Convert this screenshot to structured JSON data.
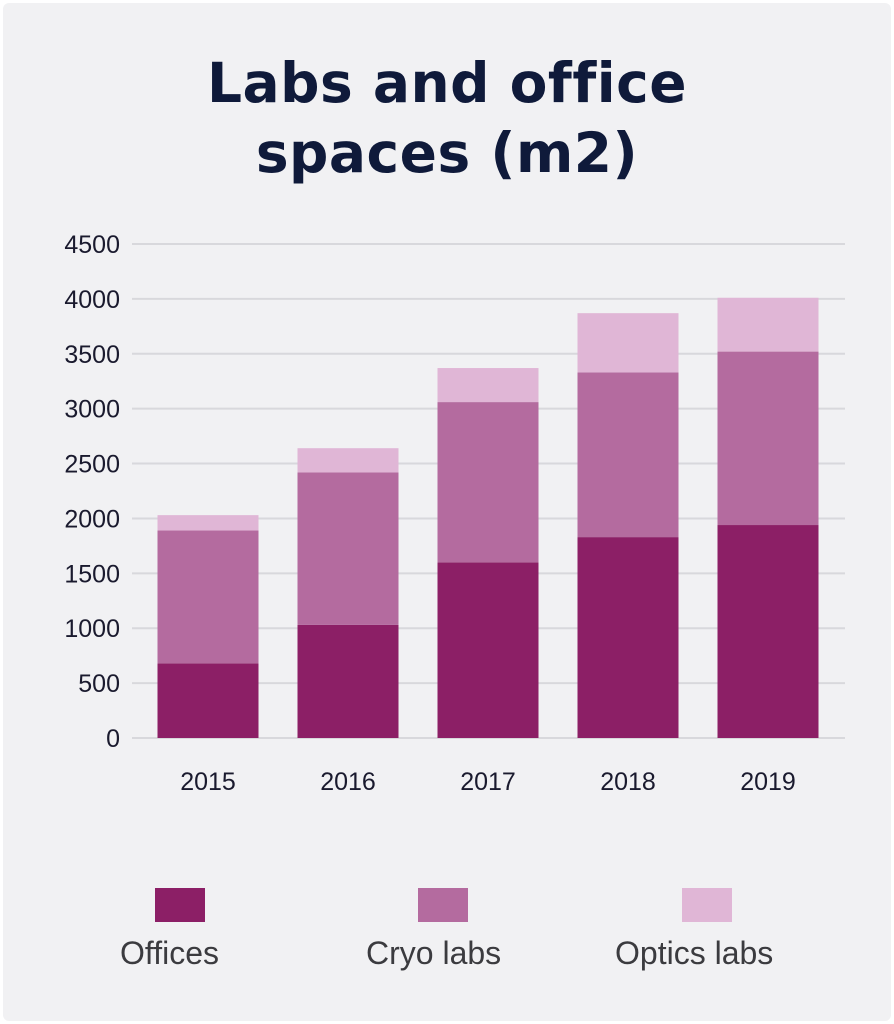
{
  "chart_data": {
    "type": "bar",
    "stacked": true,
    "title_lines": [
      "Labs and office",
      "spaces (m2)"
    ],
    "categories": [
      "2015",
      "2016",
      "2017",
      "2018",
      "2019"
    ],
    "series": [
      {
        "name": "Offices",
        "color": "#8c1f66",
        "values": [
          680,
          1030,
          1600,
          1830,
          1940
        ]
      },
      {
        "name": "Cryo labs",
        "color": "#b46b9f",
        "values": [
          1210,
          1390,
          1460,
          1500,
          1580
        ]
      },
      {
        "name": "Optics labs",
        "color": "#e0b6d6",
        "values": [
          140,
          220,
          310,
          540,
          490
        ]
      }
    ],
    "y_ticks": [
      "0",
      "500",
      "1000",
      "1500",
      "2000",
      "2500",
      "3000",
      "3500",
      "4000",
      "4500"
    ],
    "ylim": [
      0,
      4500
    ],
    "xlabel": "",
    "ylabel": "",
    "grid": true,
    "legend_position": "bottom"
  }
}
